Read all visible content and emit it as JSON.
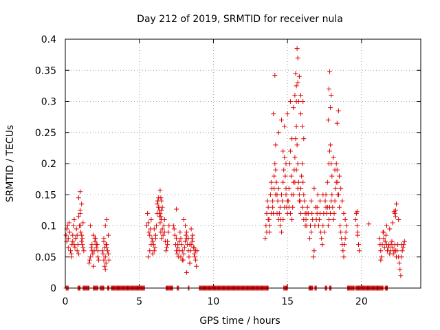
{
  "colors": {
    "series": "#dd0000",
    "axis": "#000000",
    "grid": "#a0a0a0",
    "background": "#ffffff"
  },
  "chart_data": {
    "type": "scatter",
    "title": "Day 212 of 2019, SRMTID for receiver nula",
    "xlabel": "GPS time / hours",
    "ylabel": "SRMTID / TECUs",
    "xlim": [
      0,
      24
    ],
    "ylim": [
      0,
      0.4
    ],
    "xticks": [
      0,
      5,
      10,
      15,
      20
    ],
    "xtick_labels": [
      "0",
      "5",
      "10",
      "15",
      "20"
    ],
    "yticks": [
      0,
      0.05,
      0.1,
      0.15,
      0.2,
      0.25,
      0.3,
      0.35,
      0.4
    ],
    "ytick_labels": [
      "0",
      "0.05",
      "0.1",
      "0.15",
      "0.2",
      "0.25",
      "0.3",
      "0.35",
      "0.4"
    ],
    "grid": true,
    "marker": "plus",
    "series": [
      {
        "name": "SRMTID",
        "x": [
          0.05,
          0.1,
          0.15,
          0.2,
          0.25,
          0.3,
          0.35,
          0.4,
          0.45,
          0.5,
          0.55,
          0.6,
          0.65,
          0.7,
          0.75,
          0.8,
          0.85,
          0.9,
          0.95,
          1.0,
          1.05,
          1.1,
          1.15,
          1.2,
          1.25,
          0.1,
          0.2,
          0.3,
          0.4,
          0.5,
          0.6,
          0.7,
          0.8,
          0.9,
          1.0,
          1.1,
          1.2,
          0.9,
          1.0,
          1.05,
          1.1,
          1.15,
          1.6,
          1.65,
          1.7,
          1.75,
          1.8,
          1.85,
          1.9,
          1.95,
          2.0,
          2.05,
          2.1,
          2.15,
          2.2,
          2.25,
          1.7,
          1.8,
          1.9,
          2.0,
          2.1,
          2.2,
          2.5,
          2.55,
          2.6,
          2.65,
          2.7,
          2.75,
          2.8,
          2.85,
          2.9,
          2.95,
          2.6,
          2.7,
          2.8,
          2.9,
          2.6,
          2.7,
          2.8,
          2.65,
          2.75,
          5.5,
          5.55,
          5.6,
          5.65,
          5.7,
          5.75,
          5.8,
          5.85,
          5.9,
          5.95,
          6.0,
          6.05,
          6.1,
          6.15,
          6.2,
          6.25,
          6.3,
          6.35,
          6.4,
          6.45,
          6.5,
          6.55,
          6.6,
          6.65,
          6.7,
          6.75,
          6.8,
          6.85,
          6.9,
          6.95,
          7.0,
          6.2,
          6.25,
          6.3,
          6.35,
          6.4,
          6.45,
          6.5,
          5.6,
          5.7,
          5.8,
          5.9,
          6.0,
          6.1,
          6.3,
          6.5,
          6.7,
          6.9,
          6.4,
          6.45,
          6.5,
          6.55,
          7.3,
          7.35,
          7.4,
          7.45,
          7.5,
          7.55,
          7.6,
          7.65,
          7.7,
          7.75,
          7.8,
          7.85,
          7.9,
          7.95,
          8.0,
          8.05,
          8.1,
          8.15,
          8.2,
          8.25,
          8.3,
          8.35,
          8.4,
          8.45,
          8.5,
          8.55,
          8.6,
          8.65,
          8.7,
          8.75,
          8.8,
          8.85,
          8.9,
          7.5,
          7.6,
          7.7,
          7.8,
          7.9,
          8.0,
          8.1,
          8.2,
          8.3,
          8.4,
          8.5,
          8.6,
          8.7,
          8.8,
          7.5,
          8.2,
          8.4,
          13.5,
          13.55,
          13.6,
          13.65,
          13.7,
          13.75,
          13.8,
          13.85,
          13.9,
          13.95,
          14.0,
          14.05,
          14.1,
          14.15,
          14.2,
          14.25,
          14.3,
          14.35,
          14.4,
          14.45,
          14.5,
          14.55,
          14.6,
          14.65,
          14.7,
          14.75,
          14.8,
          14.85,
          14.9,
          14.95,
          15.0,
          15.05,
          15.1,
          15.15,
          15.2,
          15.25,
          15.3,
          15.35,
          15.4,
          15.45,
          15.5,
          15.55,
          15.6,
          15.65,
          15.7,
          15.75,
          15.8,
          15.85,
          15.9,
          15.95,
          16.0,
          16.05,
          16.1,
          16.15,
          16.2,
          16.25,
          16.3,
          16.35,
          16.4,
          13.6,
          13.7,
          13.8,
          13.9,
          14.0,
          14.1,
          14.2,
          14.3,
          14.4,
          14.5,
          14.6,
          14.7,
          14.8,
          14.9,
          15.0,
          15.1,
          15.2,
          15.3,
          15.4,
          15.5,
          15.6,
          15.7,
          15.8,
          15.9,
          16.0,
          16.1,
          16.2,
          16.3,
          14.2,
          14.4,
          14.6,
          14.8,
          15.0,
          15.2,
          15.4,
          15.5,
          15.6,
          15.7,
          15.8,
          15.9,
          16.0,
          16.1,
          15.55,
          15.6,
          15.65,
          15.7,
          15.75,
          14.05,
          14.15,
          14.7,
          14.9,
          15.3,
          15.9,
          16.05,
          16.5,
          16.55,
          16.6,
          16.65,
          16.7,
          16.75,
          16.8,
          16.85,
          16.9,
          16.95,
          17.0,
          17.05,
          17.1,
          17.15,
          17.2,
          17.25,
          17.3,
          17.35,
          17.4,
          17.45,
          17.5,
          17.55,
          17.6,
          17.65,
          17.7,
          17.75,
          17.8,
          17.85,
          17.9,
          17.95,
          18.0,
          18.05,
          18.1,
          18.15,
          18.2,
          18.25,
          18.3,
          18.35,
          18.4,
          18.45,
          18.5,
          18.55,
          18.6,
          18.65,
          18.7,
          18.75,
          18.8,
          18.85,
          18.9,
          18.95,
          19.0,
          16.6,
          16.8,
          17.0,
          17.2,
          17.4,
          17.6,
          17.7,
          17.8,
          17.85,
          17.9,
          17.95,
          18.0,
          18.1,
          18.2,
          18.3,
          18.4,
          18.5,
          18.6,
          18.7,
          18.8,
          18.9,
          17.75,
          17.8,
          17.85,
          17.9,
          17.95,
          18.35,
          18.45,
          19.6,
          19.65,
          19.7,
          19.75,
          19.8,
          19.85,
          19.7,
          19.75,
          20.5,
          21.2,
          21.25,
          21.3,
          21.35,
          21.4,
          21.45,
          21.5,
          21.55,
          21.6,
          21.65,
          21.7,
          21.75,
          21.8,
          21.85,
          21.9,
          21.95,
          22.0,
          22.05,
          22.1,
          22.15,
          22.2,
          22.25,
          22.3,
          22.35,
          22.4,
          22.45,
          22.5,
          22.55,
          22.6,
          22.65,
          22.7,
          22.75,
          22.8,
          22.85,
          22.9,
          21.3,
          21.5,
          21.7,
          21.9,
          22.1,
          22.3,
          22.5,
          22.7,
          22.2,
          22.25,
          22.3,
          22.35
        ],
        "y": [
          0.085,
          0.095,
          0.1,
          0.08,
          0.105,
          0.09,
          0.06,
          0.05,
          0.07,
          0.075,
          0.1,
          0.11,
          0.065,
          0.08,
          0.095,
          0.085,
          0.07,
          0.055,
          0.1,
          0.12,
          0.09,
          0.075,
          0.08,
          0.065,
          0.06,
          0.075,
          0.065,
          0.09,
          0.055,
          0.085,
          0.07,
          0.08,
          0.06,
          0.145,
          0.155,
          0.135,
          0.105,
          0.115,
          0.125,
          0.1,
          0.085,
          0.07,
          0.04,
          0.045,
          0.05,
          0.065,
          0.07,
          0.055,
          0.035,
          0.06,
          0.075,
          0.08,
          0.065,
          0.07,
          0.05,
          0.045,
          0.1,
          0.06,
          0.085,
          0.08,
          0.07,
          0.06,
          0.06,
          0.055,
          0.045,
          0.065,
          0.05,
          0.04,
          0.07,
          0.06,
          0.055,
          0.045,
          0.075,
          0.1,
          0.11,
          0.085,
          0.08,
          0.03,
          0.065,
          0.035,
          0.07,
          0.1,
          0.12,
          0.105,
          0.09,
          0.085,
          0.095,
          0.11,
          0.08,
          0.075,
          0.07,
          0.06,
          0.065,
          0.085,
          0.1,
          0.12,
          0.14,
          0.13,
          0.115,
          0.105,
          0.09,
          0.08,
          0.095,
          0.085,
          0.1,
          0.11,
          0.075,
          0.06,
          0.065,
          0.07,
          0.09,
          0.1,
          0.135,
          0.14,
          0.13,
          0.125,
          0.12,
          0.115,
          0.11,
          0.05,
          0.06,
          0.07,
          0.055,
          0.095,
          0.08,
          0.145,
          0.125,
          0.09,
          0.075,
          0.157,
          0.145,
          0.14,
          0.13,
          0.1,
          0.095,
          0.085,
          0.07,
          0.06,
          0.055,
          0.065,
          0.05,
          0.075,
          0.09,
          0.08,
          0.07,
          0.06,
          0.045,
          0.055,
          0.065,
          0.075,
          0.085,
          0.08,
          0.07,
          0.06,
          0.05,
          0.04,
          0.06,
          0.07,
          0.08,
          0.075,
          0.065,
          0.055,
          0.05,
          0.045,
          0.035,
          0.06,
          0.08,
          0.07,
          0.06,
          0.05,
          0.045,
          0.11,
          0.1,
          0.09,
          0.08,
          0.07,
          0.095,
          0.085,
          0.065,
          0.06,
          0.127,
          0.025,
          0.04,
          0.08,
          0.1,
          0.12,
          0.14,
          0.13,
          0.11,
          0.09,
          0.15,
          0.17,
          0.16,
          0.13,
          0.12,
          0.18,
          0.2,
          0.19,
          0.17,
          0.15,
          0.14,
          0.16,
          0.12,
          0.13,
          0.11,
          0.15,
          0.14,
          0.17,
          0.19,
          0.21,
          0.18,
          0.16,
          0.13,
          0.12,
          0.14,
          0.16,
          0.2,
          0.22,
          0.18,
          0.15,
          0.13,
          0.17,
          0.19,
          0.21,
          0.24,
          0.26,
          0.23,
          0.2,
          0.17,
          0.15,
          0.14,
          0.16,
          0.18,
          0.2,
          0.17,
          0.15,
          0.14,
          0.12,
          0.11,
          0.1,
          0.13,
          0.12,
          0.09,
          0.11,
          0.1,
          0.12,
          0.14,
          0.16,
          0.15,
          0.12,
          0.11,
          0.1,
          0.09,
          0.11,
          0.13,
          0.15,
          0.14,
          0.13,
          0.12,
          0.11,
          0.15,
          0.17,
          0.19,
          0.16,
          0.14,
          0.12,
          0.13,
          0.11,
          0.1,
          0.12,
          0.23,
          0.25,
          0.27,
          0.26,
          0.28,
          0.3,
          0.29,
          0.31,
          0.3,
          0.33,
          0.34,
          0.28,
          0.26,
          0.24,
          0.345,
          0.325,
          0.385,
          0.37,
          0.3,
          0.28,
          0.342,
          0.22,
          0.2,
          0.24,
          0.31,
          0.3,
          0.08,
          0.1,
          0.09,
          0.12,
          0.11,
          0.05,
          0.06,
          0.1,
          0.13,
          0.11,
          0.12,
          0.15,
          0.1,
          0.11,
          0.12,
          0.09,
          0.08,
          0.07,
          0.1,
          0.12,
          0.09,
          0.14,
          0.15,
          0.12,
          0.13,
          0.1,
          0.11,
          0.13,
          0.12,
          0.14,
          0.15,
          0.13,
          0.11,
          0.12,
          0.14,
          0.16,
          0.2,
          0.19,
          0.17,
          0.15,
          0.13,
          0.1,
          0.09,
          0.08,
          0.07,
          0.06,
          0.05,
          0.07,
          0.08,
          0.09,
          0.1,
          0.14,
          0.16,
          0.13,
          0.14,
          0.15,
          0.13,
          0.17,
          0.2,
          0.22,
          0.23,
          0.2,
          0.18,
          0.21,
          0.19,
          0.17,
          0.15,
          0.18,
          0.16,
          0.14,
          0.12,
          0.11,
          0.27,
          0.32,
          0.348,
          0.29,
          0.31,
          0.265,
          0.285,
          0.11,
          0.12,
          0.1,
          0.09,
          0.07,
          0.06,
          0.123,
          0.085,
          0.103,
          0.08,
          0.07,
          0.06,
          0.05,
          0.07,
          0.09,
          0.08,
          0.065,
          0.075,
          0.085,
          0.07,
          0.06,
          0.065,
          0.07,
          0.055,
          0.06,
          0.07,
          0.075,
          0.065,
          0.055,
          0.06,
          0.07,
          0.06,
          0.05,
          0.06,
          0.07,
          0.05,
          0.04,
          0.03,
          0.02,
          0.05,
          0.06,
          0.065,
          0.07,
          0.075,
          0.045,
          0.09,
          0.1,
          0.095,
          0.105,
          0.115,
          0.11,
          0.07,
          0.123,
          0.12,
          0.125,
          0.135
        ],
        "zero_intervals": [
          [
            0.05,
            0.2
          ],
          [
            0.85,
            1.0
          ],
          [
            1.2,
            1.6
          ],
          [
            1.9,
            2.2
          ],
          [
            2.35,
            2.6
          ],
          [
            2.85,
            2.95
          ],
          [
            3.1,
            5.35
          ],
          [
            6.8,
            7.25
          ],
          [
            7.55,
            7.65
          ],
          [
            8.3,
            8.35
          ],
          [
            9.05,
            13.7
          ],
          [
            14.75,
            15.0
          ],
          [
            16.45,
            16.7
          ],
          [
            16.85,
            16.95
          ],
          [
            17.55,
            17.65
          ],
          [
            17.85,
            17.95
          ],
          [
            19.05,
            19.5
          ],
          [
            19.6,
            21.45
          ],
          [
            21.6,
            21.75
          ]
        ]
      }
    ]
  }
}
